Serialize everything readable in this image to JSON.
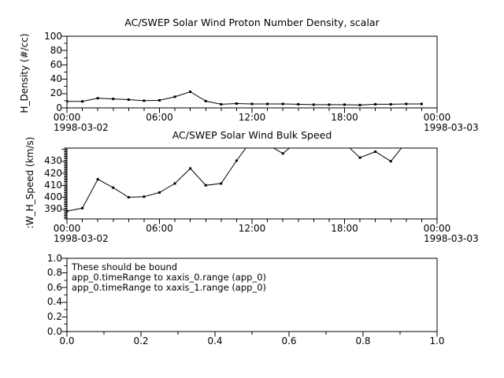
{
  "page": {
    "background": "#ffffff",
    "foreground": "#000000",
    "time_axis": {
      "start_date": "1998-03-02",
      "end_date": "1998-03-03",
      "major_tick_labels": [
        "00:00",
        "06:00",
        "12:00",
        "18:00",
        "00:00"
      ],
      "major_tick_hours": [
        0,
        6,
        12,
        18,
        24
      ],
      "minor_tick_step_hours": 1
    }
  },
  "chart_data": [
    {
      "type": "line",
      "title": "AC/SWEP  Solar Wind Proton Number Density, scalar",
      "ylabel": "H_Density (#/cc)",
      "xlabel": "",
      "x_start_date": "1998-03-02",
      "x_end_date": "1998-03-03",
      "x_range_hours": [
        0,
        24
      ],
      "x_tick_labels": [
        "00:00",
        "06:00",
        "12:00",
        "18:00",
        "00:00"
      ],
      "x_hours": [
        0,
        1,
        2,
        3,
        4,
        5,
        6,
        7,
        8,
        9,
        10,
        11,
        12,
        13,
        14,
        15,
        16,
        17,
        18,
        19,
        20,
        21,
        22,
        23
      ],
      "values": [
        9,
        9,
        13.5,
        12.5,
        11.5,
        10,
        10.5,
        15.5,
        22.5,
        9.5,
        5,
        6,
        5.5,
        5.5,
        5.5,
        5,
        4.5,
        4.5,
        4.5,
        4,
        5,
        5,
        5.5,
        5.5
      ],
      "ylim": [
        0,
        100
      ],
      "y_major_ticks": [
        0,
        20,
        40,
        60,
        80,
        100
      ],
      "y_major_step": 20,
      "y_minor_step": 10,
      "grid": "off",
      "line_color": "#000000",
      "marker": "filled-square"
    },
    {
      "type": "line",
      "title": "AC/SWEP  Solar Wind Bulk Speed",
      "ylabel": ":W_H_Speed (km/s)",
      "xlabel": "",
      "x_start_date": "1998-03-02",
      "x_end_date": "1998-03-03",
      "x_range_hours": [
        0,
        24
      ],
      "x_tick_labels": [
        "00:00",
        "06:00",
        "12:00",
        "18:00",
        "00:00"
      ],
      "x_hours": [
        0,
        1,
        2,
        3,
        4,
        5,
        6,
        7,
        8,
        9,
        10,
        11,
        12,
        13,
        14,
        15,
        16,
        17,
        18,
        19,
        20,
        21,
        22,
        23
      ],
      "values": [
        388.5,
        391,
        415,
        408,
        400,
        400.5,
        404,
        411.5,
        424,
        410,
        411.5,
        430.5,
        448,
        444,
        436.5,
        447,
        452,
        450,
        445,
        433,
        438,
        430,
        446,
        450
      ],
      "ylim": [
        382,
        441
      ],
      "y_major_ticks": [
        390,
        400,
        410,
        420,
        430
      ],
      "y_major_step": 10,
      "y_minor_step": 1,
      "clip_above_ylim": true,
      "grid": "off",
      "line_color": "#000000",
      "marker": "filled-square"
    },
    {
      "type": "empty-axes",
      "title": "",
      "annotation_lines": [
        "These should be bound",
        "app_0.timeRange to xaxis_0.range  (app_0)",
        "app_0.timeRange to xaxis_1.range  (app_0)"
      ],
      "xlim": [
        0,
        1
      ],
      "ylim": [
        0,
        1
      ],
      "x_major_ticks": [
        0,
        0.2,
        0.4,
        0.6,
        0.8,
        1
      ],
      "y_major_ticks": [
        0,
        0.2,
        0.4,
        0.6,
        0.8,
        1
      ],
      "minor_step": 0.1,
      "grid": "off"
    }
  ]
}
